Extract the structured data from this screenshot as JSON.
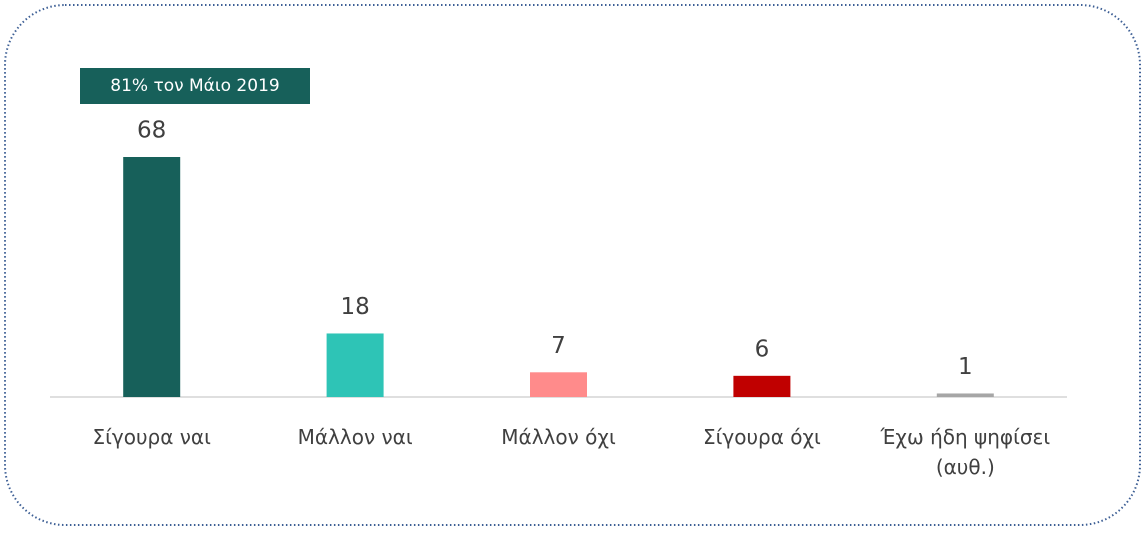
{
  "chart_data": {
    "type": "bar",
    "annotation": "81% τον Μάιο 2019",
    "categories": [
      "Σίγουρα ναι",
      "Μάλλον ναι",
      "Μάλλον όχι",
      "Σίγουρα όχι",
      "Έχω ήδη ψηφίσει (αυθ.)"
    ],
    "values": [
      68,
      18,
      7,
      6,
      1
    ],
    "colors": [
      "#17605a",
      "#2ec4b6",
      "#ff8b8b",
      "#c00000",
      "#a6a6a6"
    ]
  }
}
